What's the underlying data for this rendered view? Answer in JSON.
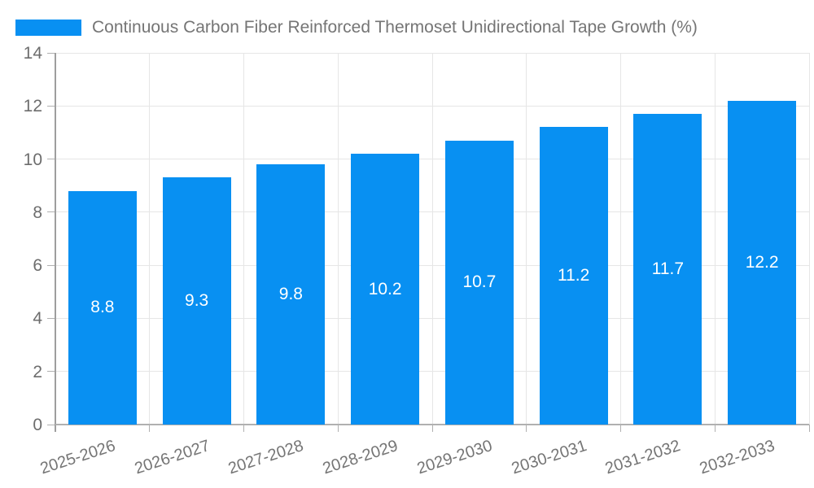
{
  "chart_data": {
    "type": "bar",
    "title": "Continuous Carbon Fiber Reinforced Thermoset Unidirectional Tape Growth (%)",
    "legend": [
      "Continuous Carbon Fiber Reinforced Thermoset Unidirectional Tape Growth (%)"
    ],
    "legend_position": "top-left",
    "categories": [
      "2025-2026",
      "2026-2027",
      "2027-2028",
      "2028-2029",
      "2029-2030",
      "2030-2031",
      "2031-2032",
      "2032-2033"
    ],
    "values": [
      8.8,
      9.3,
      9.8,
      10.2,
      10.7,
      11.2,
      11.7,
      12.2
    ],
    "value_labels": [
      "8.8",
      "9.3",
      "9.8",
      "10.2",
      "10.7",
      "11.2",
      "11.7",
      "12.2"
    ],
    "xlabel": "",
    "ylabel": "",
    "ylim": [
      0,
      14
    ],
    "yticks": [
      0,
      2,
      4,
      6,
      8,
      10,
      12,
      14
    ],
    "grid": true
  },
  "colors": {
    "bar": "#0890f2",
    "legend_swatch": "#0890f2",
    "title_text": "#757575",
    "axis_tick_text": "#6d6d6d",
    "x_label_text": "#757575",
    "gridline": "#e6e6e6",
    "axis_line": "#9e9e9e",
    "bar_value_text": "#ffffff",
    "background": "#ffffff"
  }
}
